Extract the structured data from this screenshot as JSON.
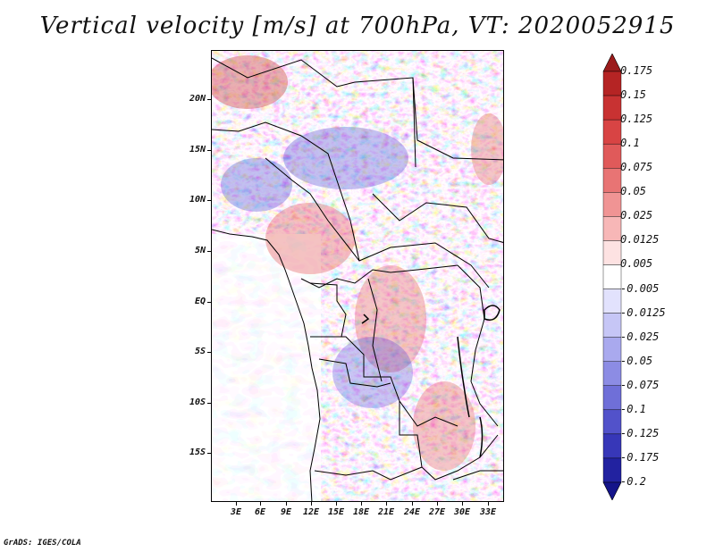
{
  "title": "Vertical velocity [m/s] at 700hPa, VT: 2020052915",
  "credit": "GrADS: IGES/COLA",
  "map": {
    "variable": "Vertical velocity",
    "units": "m/s",
    "level": "700hPa",
    "valid_time": "2020052915",
    "lat_labels": [
      "20N",
      "15N",
      "10N",
      "5N",
      "EQ",
      "5S",
      "10S",
      "15S"
    ],
    "lon_labels": [
      "3E",
      "6E",
      "9E",
      "12E",
      "15E",
      "18E",
      "21E",
      "24E",
      "27E",
      "30E",
      "33E"
    ]
  },
  "colorbar": {
    "labels": [
      "0.175",
      "0.15",
      "0.125",
      "0.1",
      "0.075",
      "0.05",
      "0.025",
      "0.0125",
      "0.005",
      "-0.005",
      "-0.0125",
      "-0.025",
      "-0.05",
      "-0.075",
      "-0.1",
      "-0.125",
      "-0.175",
      "-0.2"
    ],
    "colors": [
      "#9b1b1b",
      "#b52424",
      "#c83232",
      "#d84444",
      "#e05a5a",
      "#e87474",
      "#f09494",
      "#f7b7b7",
      "#fde2e2",
      "#ffffff",
      "#e2e2fd",
      "#c6c6f6",
      "#a9a9ee",
      "#8c8ce4",
      "#6f6fd8",
      "#5252ca",
      "#3737b8",
      "#2222a0",
      "#14148a"
    ]
  }
}
